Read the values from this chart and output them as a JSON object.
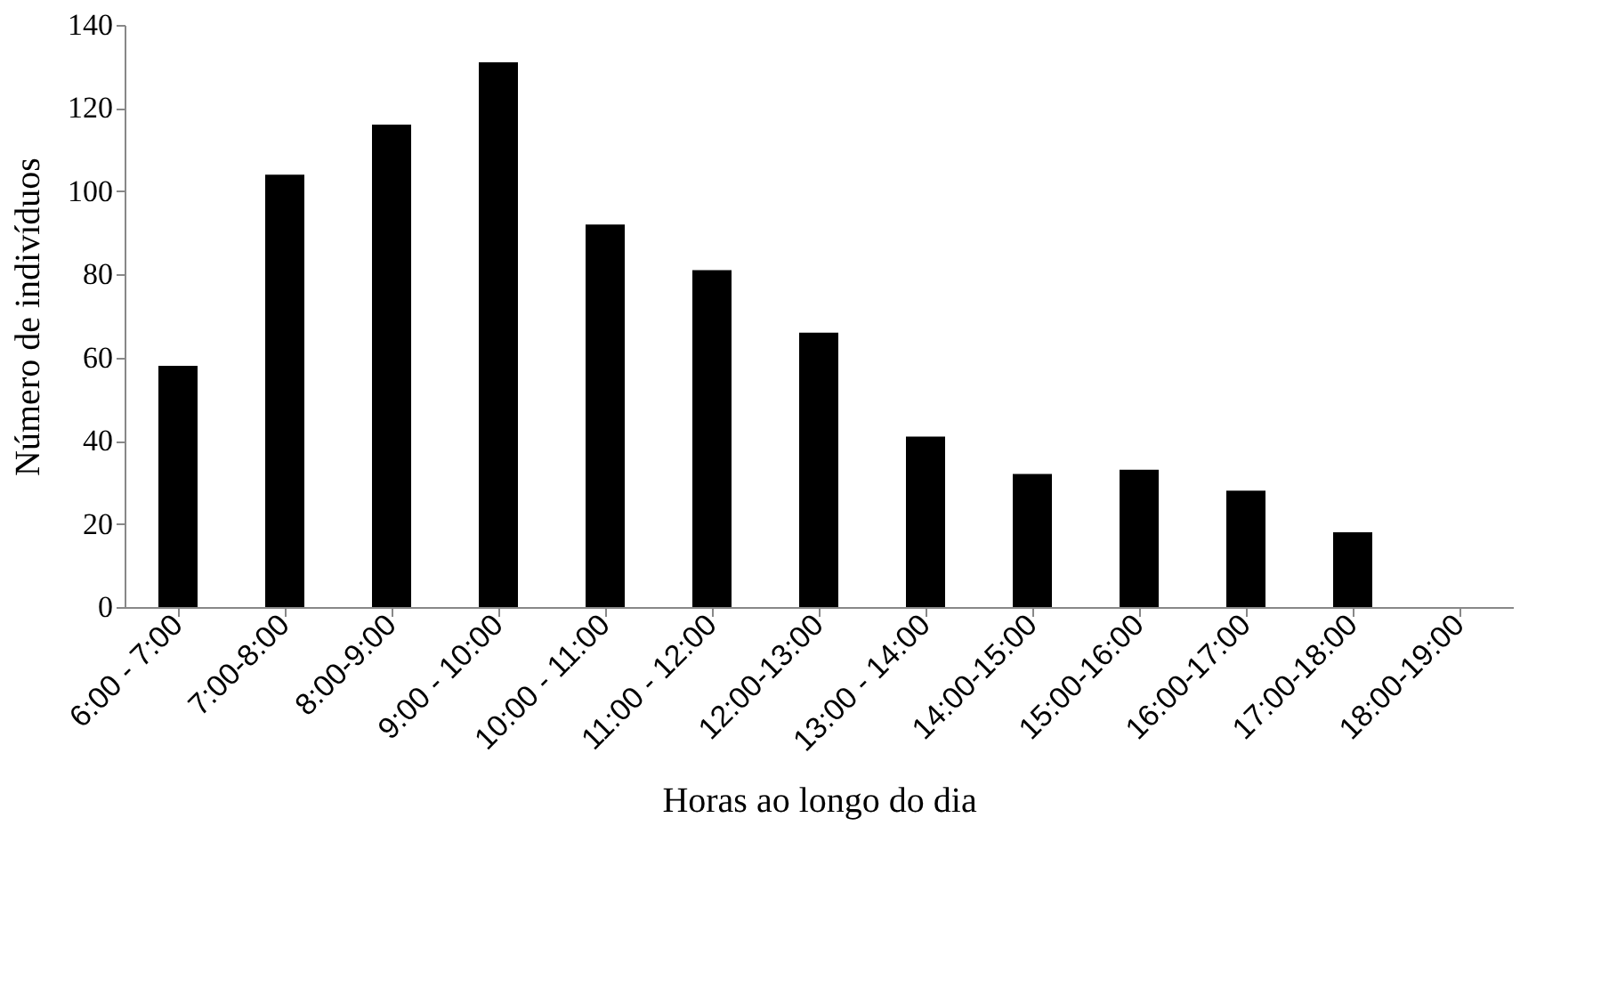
{
  "chart_data": {
    "type": "bar",
    "xlabel": "Horas ao longo do dia",
    "ylabel": "Número de indivíduos",
    "categories": [
      "6:00 - 7:00",
      "7:00-8:00",
      "8:00-9:00",
      "9:00 - 10:00",
      "10:00 - 11:00",
      "11:00 - 12:00",
      "12:00-13:00",
      "13:00 - 14:00",
      "14:00-15:00",
      "15:00-16:00",
      "16:00-17:00",
      "17:00-18:00",
      "18:00-19:00"
    ],
    "values": [
      58,
      104,
      116,
      131,
      92,
      81,
      66,
      41,
      32,
      33,
      28,
      18,
      null
    ],
    "color": "#000000",
    "ylim": [
      0,
      140
    ],
    "yticks": [
      0,
      20,
      40,
      60,
      80,
      100,
      120,
      140
    ],
    "grid": false
  }
}
